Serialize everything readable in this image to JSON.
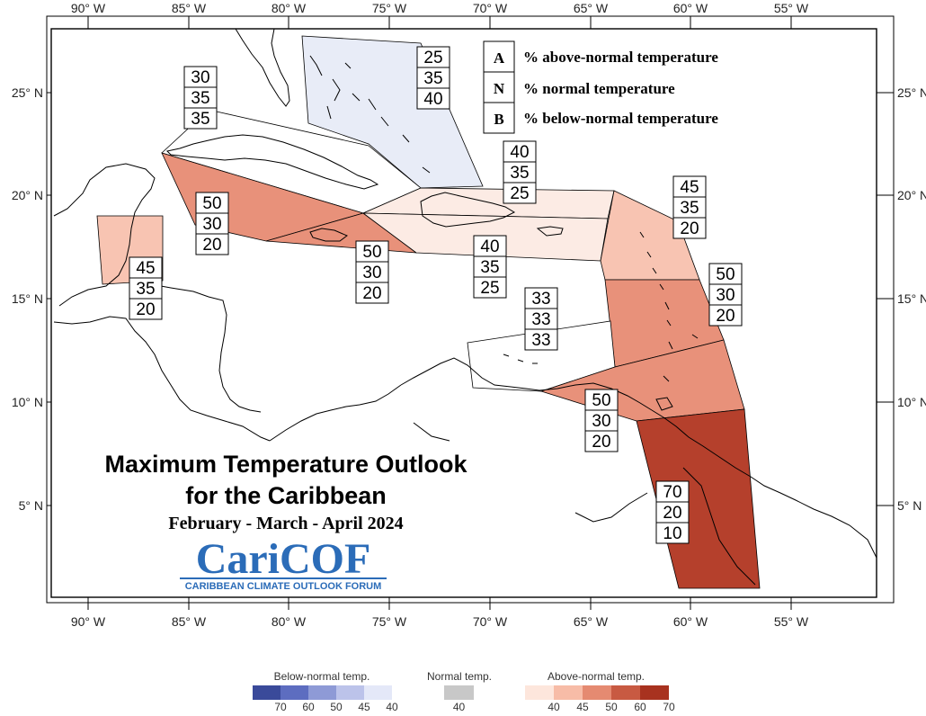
{
  "map": {
    "title_line1": "Maximum Temperature Outlook",
    "title_line2": "for the Caribbean",
    "period": "February - March - April 2024",
    "logo_text": "CariCOF",
    "logo_subtitle": "CARIBBEAN CLIMATE OUTLOOK FORUM",
    "lon_ticks": [
      "90° W",
      "85° W",
      "80° W",
      "75° W",
      "70° W",
      "65° W",
      "60° W",
      "55° W"
    ],
    "lat_ticks": [
      "25° N",
      "20° N",
      "15° N",
      "10° N",
      "5° N"
    ]
  },
  "key": [
    {
      "letter": "A",
      "text": "% above-normal temperature"
    },
    {
      "letter": "N",
      "text": "% normal temperature"
    },
    {
      "letter": "B",
      "text": "% below-normal temperature"
    }
  ],
  "regions": [
    {
      "id": "bahamas",
      "values": [
        "25",
        "35",
        "40"
      ],
      "color": "#e8ecf7"
    },
    {
      "id": "cuba",
      "values": [
        "30",
        "35",
        "35"
      ],
      "color": "#ffffff"
    },
    {
      "id": "cayman",
      "values": [
        "50",
        "30",
        "20"
      ],
      "color": "#e8917a"
    },
    {
      "id": "jamaica",
      "values": [
        "50",
        "30",
        "20"
      ],
      "color": "#e8917a"
    },
    {
      "id": "hispaniola-north",
      "values": [
        "40",
        "35",
        "25"
      ],
      "color": "#fcebe4"
    },
    {
      "id": "hispaniola-south",
      "values": [
        "40",
        "35",
        "25"
      ],
      "color": "#fcebe4"
    },
    {
      "id": "belize",
      "values": [
        "45",
        "35",
        "20"
      ],
      "color": "#f8c4b2"
    },
    {
      "id": "leeward",
      "values": [
        "45",
        "35",
        "20"
      ],
      "color": "#f8c4b2"
    },
    {
      "id": "windward",
      "values": [
        "50",
        "30",
        "20"
      ],
      "color": "#e8917a"
    },
    {
      "id": "abc-islands",
      "values": [
        "33",
        "33",
        "33"
      ],
      "color": "#ffffff"
    },
    {
      "id": "trinidad",
      "values": [
        "50",
        "30",
        "20"
      ],
      "color": "#e8917a"
    },
    {
      "id": "guianas",
      "values": [
        "70",
        "20",
        "10"
      ],
      "color": "#b5402c"
    }
  ],
  "legend": {
    "below_title": "Below-normal temp.",
    "normal_title": "Normal temp.",
    "above_title": "Above-normal temp.",
    "below_labels": [
      "70",
      "60",
      "50",
      "45",
      "40"
    ],
    "normal_labels": [
      "40"
    ],
    "above_labels": [
      "40",
      "45",
      "50",
      "60",
      "70"
    ],
    "below_colors": [
      "#3a4a9a",
      "#5d6dc0",
      "#8e9ad6",
      "#bcc3ea",
      "#e4e8f8"
    ],
    "normal_colors": [
      "#c8c8c8"
    ],
    "above_colors": [
      "#fde6dc",
      "#f7bca7",
      "#e58a71",
      "#c85a42",
      "#a8321f"
    ]
  }
}
